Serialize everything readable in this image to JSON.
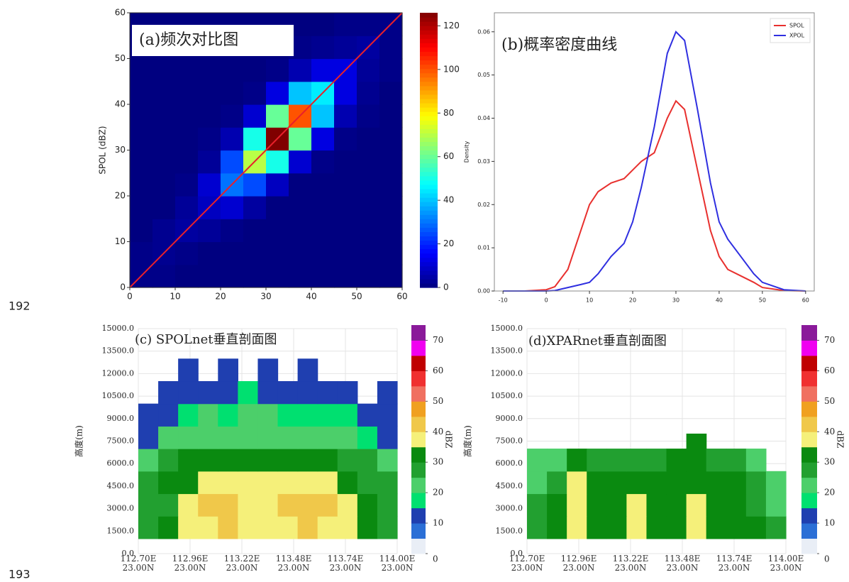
{
  "line_numbers": [
    "192",
    "193"
  ],
  "chart_data": [
    {
      "type": "heatmap",
      "title": "(a)频次对比图",
      "ylabel": "SPOL (dBZ)",
      "xlim": [
        0,
        60
      ],
      "ylim": [
        0,
        60
      ],
      "xticks": [
        0,
        10,
        20,
        30,
        40,
        50,
        60
      ],
      "yticks": [
        0,
        10,
        20,
        30,
        40,
        50,
        60
      ],
      "xbins": [
        0,
        5,
        10,
        15,
        20,
        25,
        30,
        35,
        40,
        45,
        50,
        55,
        60
      ],
      "ybins": [
        0,
        5,
        10,
        15,
        20,
        25,
        30,
        35,
        40,
        45,
        50,
        55,
        60
      ],
      "values": [
        [
          1,
          1,
          0,
          0,
          0,
          0,
          0,
          0,
          0,
          0,
          0,
          0
        ],
        [
          1,
          2,
          1,
          0,
          0,
          0,
          0,
          0,
          0,
          0,
          0,
          0
        ],
        [
          0,
          2,
          4,
          3,
          1,
          0,
          0,
          0,
          0,
          0,
          0,
          0
        ],
        [
          0,
          0,
          3,
          8,
          10,
          4,
          0,
          0,
          0,
          0,
          0,
          0
        ],
        [
          0,
          0,
          1,
          10,
          30,
          25,
          8,
          0,
          0,
          0,
          0,
          0
        ],
        [
          0,
          0,
          0,
          3,
          25,
          70,
          50,
          10,
          1,
          0,
          0,
          0
        ],
        [
          0,
          0,
          0,
          1,
          6,
          50,
          126,
          60,
          12,
          1,
          0,
          0
        ],
        [
          0,
          0,
          0,
          0,
          1,
          10,
          60,
          100,
          40,
          6,
          1,
          0
        ],
        [
          0,
          0,
          0,
          0,
          0,
          1,
          12,
          40,
          45,
          12,
          2,
          0
        ],
        [
          0,
          0,
          0,
          0,
          0,
          0,
          1,
          6,
          12,
          12,
          3,
          1
        ],
        [
          0,
          0,
          0,
          0,
          0,
          0,
          0,
          1,
          2,
          3,
          4,
          1
        ],
        [
          0,
          0,
          0,
          0,
          0,
          0,
          0,
          0,
          0,
          1,
          1,
          1
        ]
      ],
      "colormap": "jet",
      "clim": [
        0,
        126
      ],
      "cbar_ticks": [
        0,
        20,
        40,
        60,
        80,
        100,
        120
      ],
      "line": {
        "x": [
          0,
          60
        ],
        "y": [
          0,
          60
        ],
        "color": "#e8202a"
      }
    },
    {
      "type": "line",
      "title": "(b)概率密度曲线",
      "ylabel": "Density",
      "x": [
        -10,
        -5,
        0,
        2,
        5,
        8,
        10,
        12,
        15,
        18,
        20,
        22,
        25,
        28,
        30,
        32,
        35,
        38,
        40,
        42,
        45,
        48,
        50,
        55,
        60
      ],
      "series": [
        {
          "name": "SPOL",
          "color": "#e8302e",
          "values": [
            0,
            0,
            0.0003,
            0.001,
            0.005,
            0.014,
            0.02,
            0.023,
            0.025,
            0.026,
            0.028,
            0.03,
            0.032,
            0.04,
            0.044,
            0.042,
            0.028,
            0.014,
            0.008,
            0.005,
            0.0035,
            0.002,
            0.0008,
            0.0001,
            0
          ]
        },
        {
          "name": "XPOL",
          "color": "#2f2fe0",
          "values": [
            0,
            0,
            0,
            0.0001,
            0.0008,
            0.0015,
            0.002,
            0.004,
            0.008,
            0.011,
            0.016,
            0.024,
            0.038,
            0.055,
            0.06,
            0.058,
            0.042,
            0.025,
            0.016,
            0.012,
            0.008,
            0.004,
            0.002,
            0.0003,
            0
          ]
        }
      ],
      "xlim": [
        -12,
        62
      ],
      "ylim": [
        0,
        0.0644
      ],
      "xticks": [
        -10,
        0,
        10,
        20,
        30,
        40,
        50,
        60
      ],
      "yticks": [
        {
          "value": 0,
          "label": "0.00"
        },
        0.01,
        0.02,
        0.03,
        0.04,
        0.05,
        0.06
      ],
      "legend": "upper right"
    },
    {
      "type": "section",
      "title": "(c) SPOLnet垂直剖面图",
      "ylabel": "高度(m)",
      "cbar_label": "dBZ",
      "xlim": [
        112.7,
        114.0
      ],
      "ylim": [
        0,
        15000
      ],
      "grid": true,
      "xticks": [
        {
          "value": 112.7,
          "label": "112.70E\n23.00N"
        },
        {
          "value": 112.96,
          "label": "112.96E\n23.00N"
        },
        {
          "value": 113.22,
          "label": "113.22E\n23.00N"
        },
        {
          "value": 113.48,
          "label": "113.48E\n23.00N"
        },
        {
          "value": 113.74,
          "label": "113.74E\n23.00N"
        },
        {
          "value": 114.0,
          "label": "114.00E\n23.00N"
        }
      ],
      "yticks": [
        {
          "value": 0,
          "label": "0.0"
        },
        {
          "value": 1500,
          "label": "1500.0"
        },
        {
          "value": 3000,
          "label": "3000.0"
        },
        {
          "value": 4500,
          "label": "4500.0"
        },
        {
          "value": 6000,
          "label": "6000.0"
        },
        {
          "value": 7500,
          "label": "7500.0"
        },
        {
          "value": 9000,
          "label": "9000.0"
        },
        {
          "value": 10500,
          "label": "10500.0"
        },
        {
          "value": 12000,
          "label": "12000.0"
        },
        {
          "value": 13500,
          "label": "13500.0"
        },
        {
          "value": 15000,
          "label": "15000.0"
        }
      ],
      "xbins": [
        112.7,
        112.8,
        112.9,
        113.0,
        113.1,
        113.2,
        113.3,
        113.4,
        113.5,
        113.6,
        113.7,
        113.8,
        113.9,
        114.0
      ],
      "ybins": [
        1000,
        2500,
        4000,
        5500,
        7000,
        8500,
        10000,
        11500,
        13000
      ],
      "values": [
        [
          28,
          30,
          35,
          38,
          40,
          38,
          35,
          38,
          40,
          38,
          36,
          30,
          28
        ],
        [
          25,
          28,
          35,
          40,
          42,
          38,
          36,
          40,
          42,
          40,
          38,
          30,
          26
        ],
        [
          25,
          30,
          33,
          36,
          38,
          35,
          35,
          36,
          38,
          36,
          34,
          28,
          25
        ],
        [
          22,
          26,
          30,
          33,
          34,
          32,
          30,
          30,
          32,
          30,
          28,
          25,
          22
        ],
        [
          14,
          20,
          24,
          24,
          22,
          22,
          24,
          22,
          20,
          22,
          20,
          18,
          14
        ],
        [
          12,
          14,
          18,
          20,
          16,
          20,
          20,
          16,
          18,
          16,
          18,
          14,
          12
        ],
        [
          null,
          12,
          12,
          14,
          12,
          16,
          14,
          12,
          12,
          12,
          14,
          null,
          12
        ],
        [
          null,
          null,
          12,
          null,
          12,
          null,
          12,
          null,
          12,
          null,
          null,
          null,
          null
        ]
      ],
      "levels": [
        0,
        5,
        10,
        15,
        20,
        25,
        30,
        35,
        40,
        45,
        50,
        55,
        60,
        65,
        70,
        75
      ],
      "colors": [
        "#e9eef6",
        "#2b6fd6",
        "#1f3fb0",
        "#00e070",
        "#4ccf6a",
        "#22a030",
        "#0a8a10",
        "#f5f07a",
        "#f0c84a",
        "#f0a020",
        "#f07060",
        "#f03030",
        "#c00000",
        "#f000f0",
        "#8a1a9a"
      ],
      "cbar_ticks": [
        0,
        10,
        20,
        30,
        40,
        50,
        60,
        70
      ]
    },
    {
      "type": "section",
      "title": "(d)XPARnet垂直剖面图",
      "ylabel": "高度(m)",
      "cbar_label": "dBZ",
      "xlim": [
        112.7,
        114.0
      ],
      "ylim": [
        0,
        15000
      ],
      "grid": true,
      "xticks": [
        {
          "value": 112.7,
          "label": "112.70E\n23.00N"
        },
        {
          "value": 112.96,
          "label": "112.96E\n23.00N"
        },
        {
          "value": 113.22,
          "label": "113.22E\n23.00N"
        },
        {
          "value": 113.48,
          "label": "113.48E\n23.00N"
        },
        {
          "value": 113.74,
          "label": "113.74E\n23.00N"
        },
        {
          "value": 114.0,
          "label": "114.00E\n23.00N"
        }
      ],
      "yticks": [
        {
          "value": 0,
          "label": "0.0"
        },
        {
          "value": 1500,
          "label": "1500.0"
        },
        {
          "value": 3000,
          "label": "3000.0"
        },
        {
          "value": 4500,
          "label": "4500.0"
        },
        {
          "value": 6000,
          "label": "6000.0"
        },
        {
          "value": 7500,
          "label": "7500.0"
        },
        {
          "value": 9000,
          "label": "9000.0"
        },
        {
          "value": 10500,
          "label": "10500.0"
        },
        {
          "value": 12000,
          "label": "12000.0"
        },
        {
          "value": 13500,
          "label": "13500.0"
        },
        {
          "value": 15000,
          "label": "15000.0"
        }
      ],
      "xbins": [
        112.7,
        112.8,
        112.9,
        113.0,
        113.1,
        113.2,
        113.3,
        113.4,
        113.5,
        113.6,
        113.7,
        113.8,
        113.9,
        114.0
      ],
      "ybins": [
        1000,
        2500,
        4000,
        5500,
        7000,
        8000
      ],
      "values": [
        [
          28,
          32,
          36,
          33,
          34,
          36,
          34,
          34,
          36,
          34,
          32,
          30,
          26
        ],
        [
          26,
          30,
          36,
          32,
          34,
          35,
          33,
          34,
          36,
          34,
          32,
          28,
          24
        ],
        [
          24,
          28,
          35,
          30,
          30,
          32,
          30,
          32,
          34,
          32,
          30,
          26,
          22
        ],
        [
          22,
          24,
          30,
          26,
          26,
          26,
          28,
          30,
          32,
          28,
          26,
          22,
          null
        ],
        [
          null,
          null,
          null,
          null,
          null,
          null,
          null,
          null,
          33,
          null,
          null,
          null,
          null
        ]
      ],
      "levels": [
        0,
        5,
        10,
        15,
        20,
        25,
        30,
        35,
        40,
        45,
        50,
        55,
        60,
        65,
        70,
        75
      ],
      "colors": [
        "#e9eef6",
        "#2b6fd6",
        "#1f3fb0",
        "#00e070",
        "#4ccf6a",
        "#22a030",
        "#0a8a10",
        "#f5f07a",
        "#f0c84a",
        "#f0a020",
        "#f07060",
        "#f03030",
        "#c00000",
        "#f000f0",
        "#8a1a9a"
      ],
      "cbar_ticks": [
        0,
        10,
        20,
        30,
        40,
        50,
        60,
        70
      ]
    }
  ]
}
